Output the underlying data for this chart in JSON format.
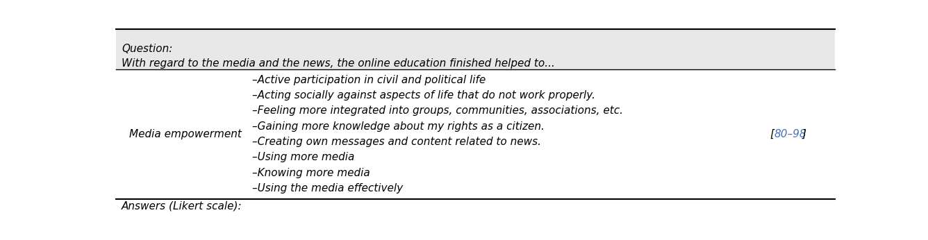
{
  "question_label": "Question:",
  "question_text": "With regard to the media and the news, the online education finished helped to...",
  "dimension": "Media empowerment",
  "items": [
    "–Active participation in civil and political life",
    "–Acting socially against aspects of life that do not work properly.",
    "–Feeling more integrated into groups, communities, associations, etc.",
    "–Gaining more knowledge about my rights as a citizen.",
    "–Creating own messages and content related to news.",
    "–Using more media",
    "–Knowing more media",
    "–Using the media effectively"
  ],
  "reference_numbers": "80–98",
  "reference_color": "#4472C4",
  "bottom_label": "Answers (Likert scale):",
  "header_bg": "#E8E8E8",
  "body_bg": "#FFFFFF",
  "font_size": 11
}
